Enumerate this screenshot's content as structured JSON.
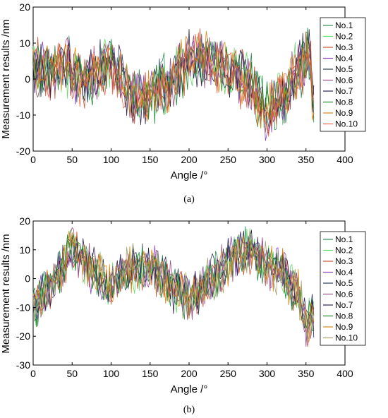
{
  "chart_data": [
    {
      "type": "line",
      "caption": "(a)",
      "xlabel": "Angle /°",
      "ylabel": "Measurement results /nm",
      "xlim": [
        0,
        400
      ],
      "ylim": [
        -20,
        20
      ],
      "xticks": [
        0,
        50,
        100,
        150,
        200,
        250,
        300,
        350,
        400
      ],
      "yticks": [
        -20,
        -10,
        0,
        10,
        20
      ],
      "grid": false,
      "legend": "top-right",
      "x_range": [
        0,
        360
      ],
      "trend": {
        "x": [
          0,
          20,
          40,
          60,
          80,
          100,
          120,
          140,
          160,
          180,
          200,
          220,
          240,
          260,
          280,
          300,
          320,
          340,
          355,
          360
        ],
        "y": [
          3,
          2,
          4,
          0,
          1,
          6,
          -2,
          -6,
          -3,
          0,
          5,
          6,
          4,
          1,
          -2,
          -10,
          -5,
          3,
          6,
          -8
        ]
      },
      "series": [
        {
          "name": "No.1",
          "color": "#2e8b57"
        },
        {
          "name": "No.2",
          "color": "#66dd66"
        },
        {
          "name": "No.3",
          "color": "#cc5533"
        },
        {
          "name": "No.4",
          "color": "#8844bb"
        },
        {
          "name": "No.5",
          "color": "#2f3f5f"
        },
        {
          "name": "No.6",
          "color": "#a05080"
        },
        {
          "name": "No.7",
          "color": "#332255"
        },
        {
          "name": "No.8",
          "color": "#1a8a2a"
        },
        {
          "name": "No.9",
          "color": "#dd8811"
        },
        {
          "name": "No.10",
          "color": "#ee6644"
        }
      ]
    },
    {
      "type": "line",
      "caption": "(b)",
      "xlabel": "Angle /°",
      "ylabel": "Measurement results /nm",
      "xlim": [
        0,
        400
      ],
      "ylim": [
        -30,
        20
      ],
      "xticks": [
        0,
        50,
        100,
        150,
        200,
        250,
        300,
        350,
        400
      ],
      "yticks": [
        -30,
        -20,
        -10,
        0,
        10,
        20
      ],
      "grid": false,
      "legend": "top-right",
      "x_range": [
        0,
        360
      ],
      "trend": {
        "x": [
          0,
          20,
          40,
          50,
          60,
          80,
          100,
          120,
          140,
          160,
          180,
          200,
          220,
          240,
          260,
          280,
          300,
          320,
          340,
          350,
          360
        ],
        "y": [
          -10,
          -3,
          5,
          10,
          8,
          2,
          -3,
          3,
          4,
          2,
          -3,
          -7,
          -3,
          3,
          8,
          10,
          5,
          2,
          -5,
          -15,
          -12
        ]
      },
      "series": [
        {
          "name": "No.1",
          "color": "#2e8b57"
        },
        {
          "name": "No.2",
          "color": "#66dd66"
        },
        {
          "name": "No.3",
          "color": "#cc5533"
        },
        {
          "name": "No.4",
          "color": "#8844bb"
        },
        {
          "name": "No.5",
          "color": "#2f3f5f"
        },
        {
          "name": "No.6",
          "color": "#a05080"
        },
        {
          "name": "No.7",
          "color": "#332255"
        },
        {
          "name": "No.8",
          "color": "#1a8a2a"
        },
        {
          "name": "No.9",
          "color": "#dd8811"
        },
        {
          "name": "No.10",
          "color": "#a8a070"
        }
      ]
    }
  ]
}
